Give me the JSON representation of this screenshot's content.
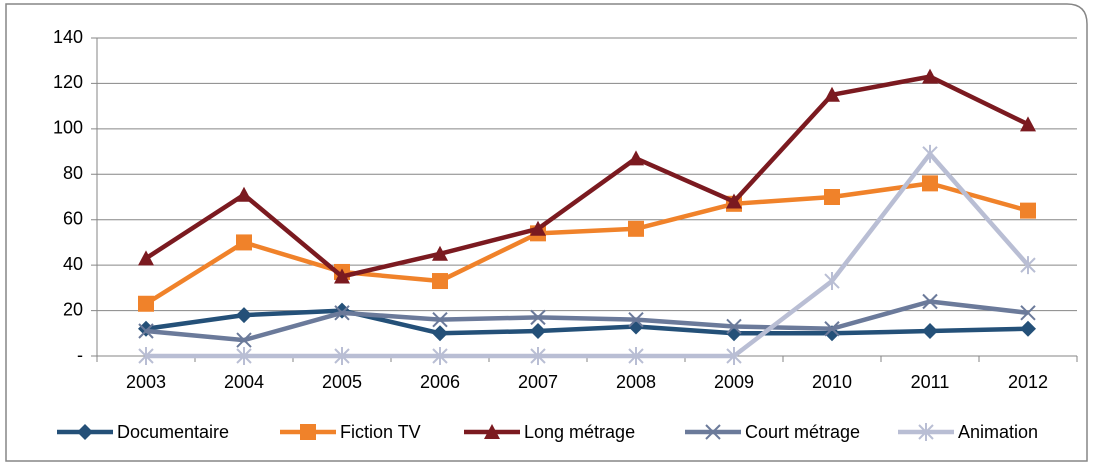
{
  "chart_data": {
    "type": "line",
    "categories": [
      "2003",
      "2004",
      "2005",
      "2006",
      "2007",
      "2008",
      "2009",
      "2010",
      "2011",
      "2012"
    ],
    "series": [
      {
        "name": "Documentaire",
        "color": "#245078",
        "marker": "diamond",
        "values": [
          12,
          18,
          20,
          10,
          11,
          13,
          10,
          10,
          11,
          12
        ]
      },
      {
        "name": "Fiction TV",
        "color": "#f0822a",
        "marker": "square",
        "values": [
          23,
          50,
          37,
          33,
          54,
          56,
          67,
          70,
          76,
          64
        ]
      },
      {
        "name": "Long métrage",
        "color": "#7b1a20",
        "marker": "triangle",
        "values": [
          43,
          71,
          35,
          45,
          56,
          87,
          68,
          115,
          123,
          102
        ]
      },
      {
        "name": "Court métrage",
        "color": "#6b7a9a",
        "marker": "x",
        "values": [
          11,
          7,
          19,
          16,
          17,
          16,
          13,
          12,
          24,
          19
        ]
      },
      {
        "name": "Animation",
        "color": "#b9bed4",
        "marker": "asterisk",
        "values": [
          0,
          0,
          0,
          0,
          0,
          0,
          0,
          33,
          89,
          40
        ]
      }
    ],
    "ylim": [
      0,
      140
    ],
    "yticks": [
      {
        "value": 0,
        "label": "-"
      },
      20,
      40,
      60,
      80,
      100,
      120,
      140
    ],
    "grid": true,
    "legend": "bottom"
  }
}
